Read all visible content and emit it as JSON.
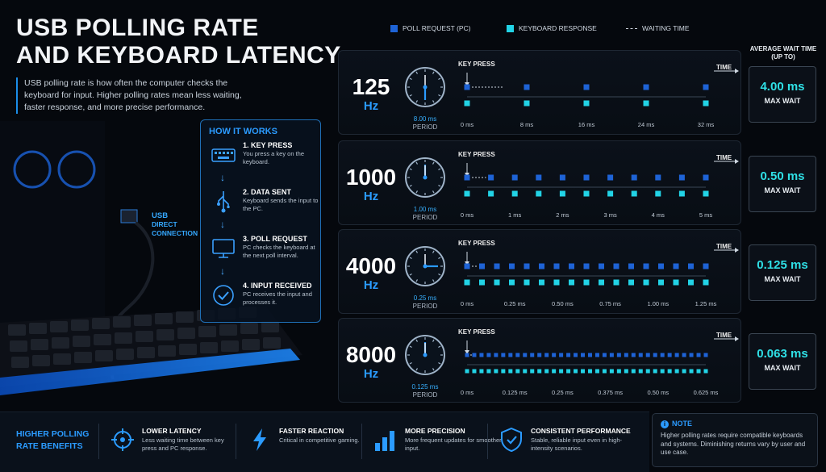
{
  "title": {
    "line1": "USB Polling Rate",
    "line2": "and Keyboard Latency"
  },
  "intro": "USB polling rate is how often the computer checks the keyboard for input. Higher polling rates mean less waiting, faster response, and more precise performance.",
  "legend": {
    "poll": "Poll Request (PC)",
    "response": "Keyboard Response",
    "waiting": "Waiting Time"
  },
  "colors": {
    "poll": "#1e63d6",
    "response": "#22d3e6",
    "accent": "#2b9bff",
    "wait_value": "#2fe0e6"
  },
  "wait_header": {
    "line1": "AVERAGE WAIT TIME",
    "line2": "(UP TO)"
  },
  "how": {
    "title": "HOW IT WORKS",
    "steps": [
      {
        "title": "1. KEY PRESS",
        "desc": "You press a key on the keyboard.",
        "icon": "keyboard-icon"
      },
      {
        "title": "2. DATA SENT",
        "desc": "Keyboard sends the input to the PC.",
        "icon": "usb-icon"
      },
      {
        "title": "3. POLL REQUEST",
        "desc": "PC checks the keyboard at the next poll interval.",
        "icon": "monitor-icon"
      },
      {
        "title": "4. INPUT RECEIVED",
        "desc": "PC receives the input and processes it.",
        "icon": "checkmark-icon"
      }
    ]
  },
  "usb_label": {
    "line1": "USB",
    "line2": "DIRECT",
    "line3": "CONNECTION"
  },
  "labels": {
    "key_press": "KEY PRESS",
    "time": "TIME",
    "max_wait": "MAX WAIT",
    "period": "PERIOD"
  },
  "rates": [
    {
      "hz": "125",
      "unit": "Hz",
      "period": "8.00 ms",
      "wait": "4.00 ms",
      "polls": 5,
      "ticks": [
        "0 ms",
        "8 ms",
        "16 ms",
        "24 ms",
        "32 ms"
      ],
      "hand_angle": 180
    },
    {
      "hz": "1000",
      "unit": "Hz",
      "period": "1.00 ms",
      "wait": "0.50 ms",
      "polls": 11,
      "ticks": [
        "0 ms",
        "1 ms",
        "2 ms",
        "3 ms",
        "4 ms",
        "5 ms"
      ],
      "hand_angle": 0
    },
    {
      "hz": "4000",
      "unit": "Hz",
      "period": "0.25 ms",
      "wait": "0.125 ms",
      "polls": 17,
      "ticks": [
        "0 ms",
        "0.25 ms",
        "0.50 ms",
        "0.75 ms",
        "1.00 ms",
        "1.25 ms"
      ],
      "hand_angle": 90
    },
    {
      "hz": "8000",
      "unit": "Hz",
      "period": "0.125 ms",
      "wait": "0.063 ms",
      "polls": 34,
      "ticks": [
        "0 ms",
        "0.125 ms",
        "0.25 ms",
        "0.375 ms",
        "0.50 ms",
        "0.625 ms"
      ],
      "hand_angle": 0
    }
  ],
  "benefits": {
    "heading_line1": "HIGHER POLLING",
    "heading_line2": "RATE BENEFITS",
    "items": [
      {
        "title": "LOWER LATENCY",
        "desc": "Less waiting time between key press and PC response.",
        "icon": "crosshair-icon"
      },
      {
        "title": "FASTER REACTION",
        "desc": "Critical in competitive gaming.",
        "icon": "lightning-icon"
      },
      {
        "title": "MORE PRECISION",
        "desc": "More frequent updates for smoother input.",
        "icon": "bars-icon"
      },
      {
        "title": "CONSISTENT PERFORMANCE",
        "desc": "Stable, reliable input even in high-intensity scenarios.",
        "icon": "shield-icon"
      }
    ]
  },
  "note": {
    "title": "NOTE",
    "body": "Higher polling rates require compatible keyboards and systems. Diminishing returns vary by user and use case."
  }
}
